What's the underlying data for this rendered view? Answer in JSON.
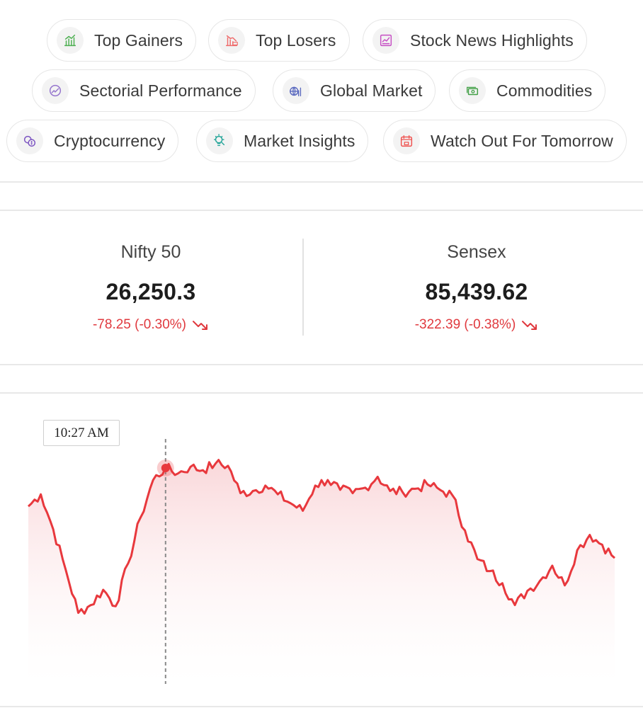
{
  "chips": [
    {
      "id": "top-gainers",
      "label": "Top Gainers",
      "icon": "chart-up-icon",
      "color": "#4caf50"
    },
    {
      "id": "top-losers",
      "label": "Top Losers",
      "icon": "loss-chart-icon",
      "color": "#ef6b6b"
    },
    {
      "id": "stock-news",
      "label": "Stock News Highlights",
      "icon": "newspaper-icon",
      "color": "#c64fc4"
    },
    {
      "id": "sectorial",
      "label": "Sectorial Performance",
      "icon": "sector-gauge-icon",
      "color": "#9575cd"
    },
    {
      "id": "global-market",
      "label": "Global Market",
      "icon": "globe-chart-icon",
      "color": "#5c6bc0"
    },
    {
      "id": "commodities",
      "label": "Commodities",
      "icon": "money-stack-icon",
      "color": "#43a047"
    },
    {
      "id": "crypto",
      "label": "Cryptocurrency",
      "icon": "coins-icon",
      "color": "#7e57c2"
    },
    {
      "id": "insights",
      "label": "Market Insights",
      "icon": "bulb-search-icon",
      "color": "#26a69a"
    },
    {
      "id": "watch-out",
      "label": "Watch Out For Tomorrow",
      "icon": "calendar-icon",
      "color": "#ef5350"
    }
  ],
  "indices": {
    "nifty": {
      "name": "Nifty 50",
      "value": "26,250.3",
      "change": "-78.25 (-0.30%)"
    },
    "sensex": {
      "name": "Sensex",
      "value": "85,439.62",
      "change": "-322.39 (-0.38%)"
    }
  },
  "chart": {
    "tooltip_time": "10:27 AM",
    "line_color": "#e8383d",
    "area_color": "#f9d3d6"
  },
  "chart_data": {
    "type": "line",
    "series": [
      {
        "values": [
          26286,
          26297,
          26265,
          26228,
          26189,
          26196,
          26210,
          26195,
          26234,
          26276,
          26310,
          26321,
          26316,
          26322,
          26319,
          26325,
          26323,
          26298,
          26300,
          26305,
          26297,
          26289,
          26282,
          26305,
          26310,
          26301,
          26298,
          26303,
          26313,
          26300,
          26299,
          26302,
          26306,
          26301,
          26296,
          26264,
          26238,
          26227,
          26216,
          26196,
          26209,
          26218,
          26232,
          26214,
          26246,
          26260,
          26251,
          26239
        ]
      }
    ],
    "xlim": [
      0,
      47
    ],
    "ylim": [
      26150,
      26350
    ],
    "tooltip_index": 11,
    "grid": false
  }
}
